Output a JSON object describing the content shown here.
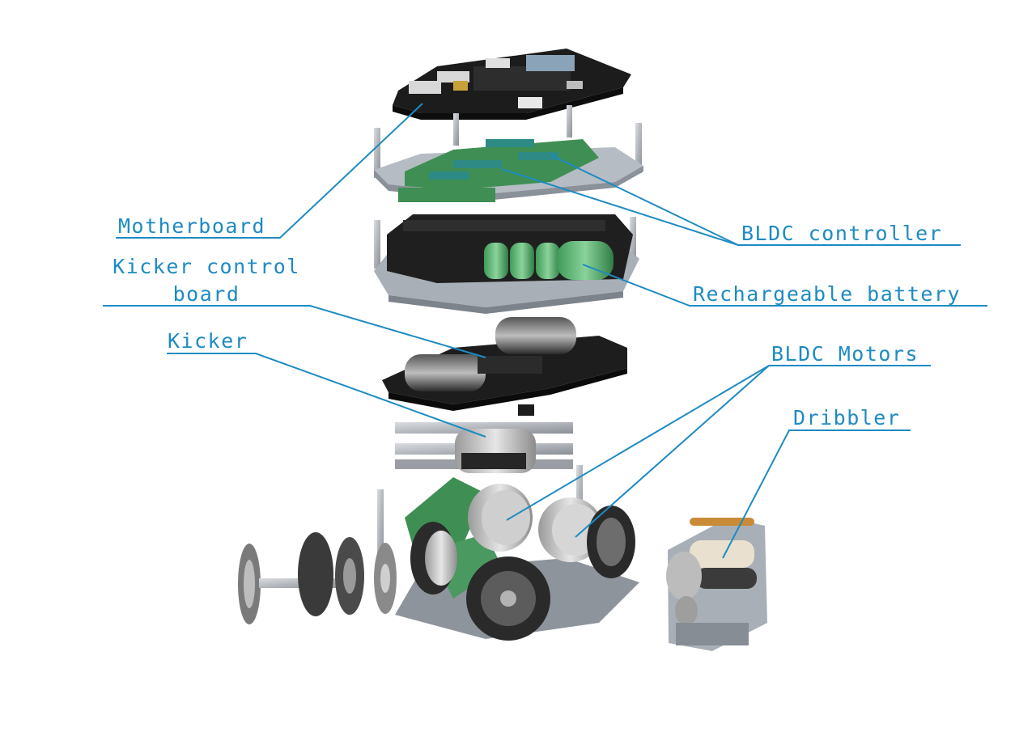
{
  "accent_color": "#1e8bc3",
  "labels": {
    "motherboard": "Motherboard",
    "kicker_control_board_line1": "Kicker control",
    "kicker_control_board_line2": "board",
    "kicker": "Kicker",
    "bldc_controller": "BLDC controller",
    "rechargeable_battery": "Rechargeable battery",
    "bldc_motors": "BLDC Motors",
    "dribbler": "Dribbler"
  }
}
